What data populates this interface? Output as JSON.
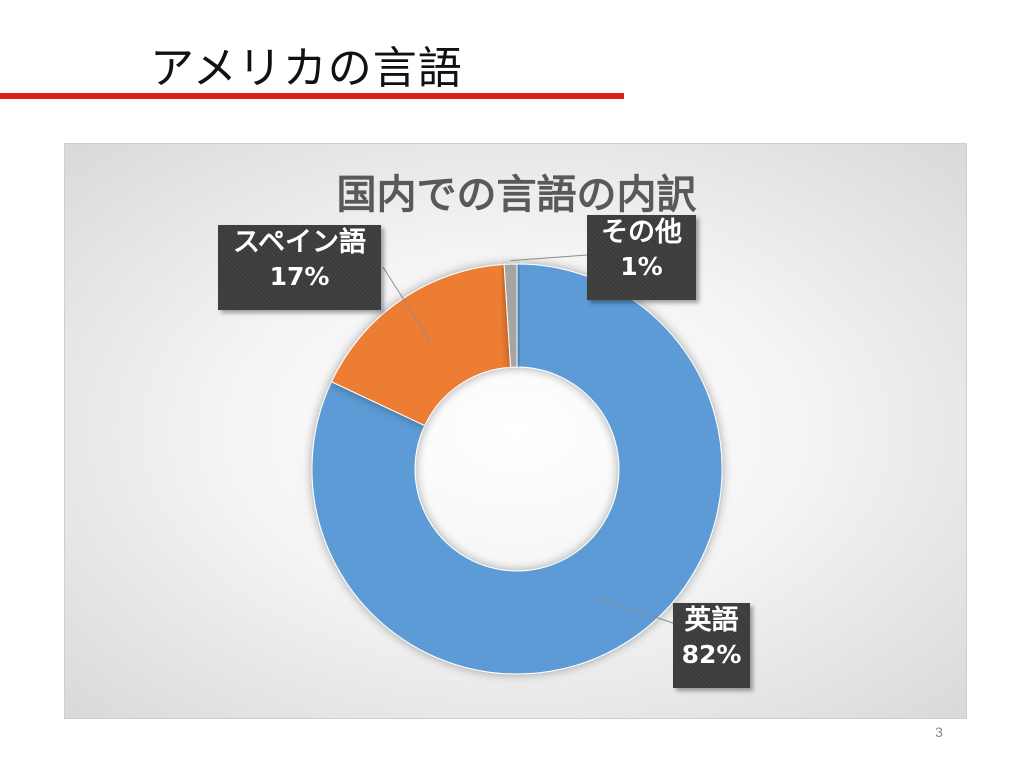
{
  "slide": {
    "title": "アメリカの言語",
    "page_number": "3"
  },
  "colors": {
    "title_rule": "#e31b1b",
    "english": "#5b9bd5",
    "spanish": "#ed7d31",
    "other": "#a5a5a5",
    "label_background": "#3b3b3b"
  },
  "chart_data": {
    "type": "pie",
    "subtype": "doughnut",
    "title": "国内での言語の内訳",
    "legend": "none",
    "slices": [
      {
        "name": "英語",
        "value": 82,
        "label": "82%",
        "color": "#5b9bd5"
      },
      {
        "name": "スペイン語",
        "value": 17,
        "label": "17%",
        "color": "#ed7d31"
      },
      {
        "name": "その他",
        "value": 1,
        "label": "1%",
        "color": "#a5a5a5"
      }
    ]
  }
}
